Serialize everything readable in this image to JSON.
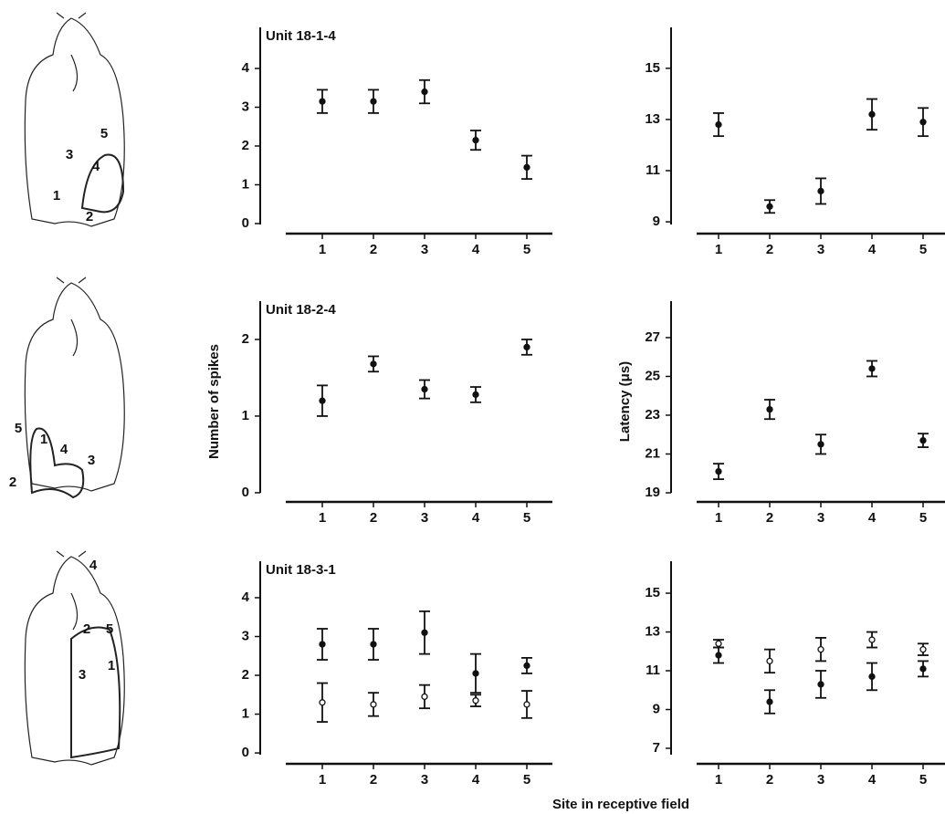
{
  "chart_data": [
    {
      "type": "errorbar",
      "title": "Unit 18-1-4",
      "categories": [
        "1",
        "2",
        "3",
        "4",
        "5"
      ],
      "series": [
        {
          "marker": "filled",
          "color": "#111",
          "values": [
            3.15,
            3.15,
            3.4,
            2.15,
            1.45
          ],
          "errors": [
            0.3,
            0.3,
            0.3,
            0.25,
            0.3
          ]
        }
      ],
      "ylim": [
        -0.26,
        5.06
      ],
      "yticks": [
        0,
        1,
        2,
        3,
        4
      ]
    },
    {
      "type": "errorbar",
      "categories": [
        "1",
        "2",
        "3",
        "4",
        "5"
      ],
      "series": [
        {
          "marker": "filled",
          "color": "#111",
          "values": [
            12.8,
            9.6,
            10.2,
            13.2,
            12.9
          ],
          "errors": [
            0.45,
            0.25,
            0.5,
            0.6,
            0.55
          ]
        }
      ],
      "ylim": [
        8.54,
        16.6
      ],
      "yticks": [
        9,
        11,
        13,
        15
      ]
    },
    {
      "type": "errorbar",
      "title": "Unit 18-2-4",
      "ylabel": "Number of spikes",
      "categories": [
        "1",
        "2",
        "3",
        "4",
        "5"
      ],
      "series": [
        {
          "marker": "filled",
          "color": "#111",
          "values": [
            1.2,
            1.68,
            1.35,
            1.28,
            1.9
          ],
          "errors": [
            0.2,
            0.1,
            0.12,
            0.1,
            0.1
          ]
        }
      ],
      "ylim": [
        -0.12,
        2.5
      ],
      "yticks": [
        0,
        1,
        2
      ]
    },
    {
      "type": "errorbar",
      "ylabel": "Latency (μs)",
      "categories": [
        "1",
        "2",
        "3",
        "4",
        "5"
      ],
      "series": [
        {
          "marker": "filled",
          "color": "#111",
          "values": [
            20.1,
            23.3,
            21.5,
            25.4,
            21.7
          ],
          "errors": [
            0.4,
            0.5,
            0.5,
            0.4,
            0.35
          ]
        }
      ],
      "ylim": [
        18.53,
        28.88
      ],
      "yticks": [
        19,
        21,
        23,
        25,
        27
      ]
    },
    {
      "type": "errorbar",
      "title": "Unit 18-3-1",
      "categories": [
        "1",
        "2",
        "3",
        "4",
        "5"
      ],
      "series": [
        {
          "marker": "filled",
          "color": "#111",
          "values": [
            2.8,
            2.8,
            3.1,
            2.05,
            2.25
          ],
          "errors": [
            0.4,
            0.4,
            0.55,
            0.5,
            0.2
          ]
        },
        {
          "marker": "open",
          "color": "#111",
          "values": [
            1.3,
            1.25,
            1.45,
            1.35,
            1.25
          ],
          "errors": [
            0.5,
            0.3,
            0.3,
            0.15,
            0.35
          ]
        }
      ],
      "ylim": [
        -0.28,
        4.94
      ],
      "yticks": [
        0,
        1,
        2,
        3,
        4
      ]
    },
    {
      "type": "errorbar",
      "categories": [
        "1",
        "2",
        "3",
        "4",
        "5"
      ],
      "series": [
        {
          "marker": "filled",
          "color": "#111",
          "values": [
            11.8,
            9.4,
            10.3,
            10.7,
            11.1
          ],
          "errors": [
            0.4,
            0.6,
            0.7,
            0.7,
            0.4
          ]
        },
        {
          "marker": "open",
          "color": "#111",
          "values": [
            12.4,
            11.5,
            12.1,
            12.6,
            12.1
          ],
          "errors": [
            0.2,
            0.6,
            0.6,
            0.4,
            0.3
          ]
        }
      ],
      "ylim": [
        6.2,
        16.65
      ],
      "yticks": [
        7,
        9,
        11,
        13,
        15
      ]
    }
  ],
  "xlabel": "Site in receptive field",
  "drawings": [
    {
      "sites": [
        "1",
        "2",
        "3",
        "4",
        "5"
      ]
    },
    {
      "sites": [
        "5",
        "1",
        "4",
        "3",
        "2"
      ]
    },
    {
      "sites": [
        "4",
        "2",
        "5",
        "3",
        "1"
      ]
    }
  ]
}
